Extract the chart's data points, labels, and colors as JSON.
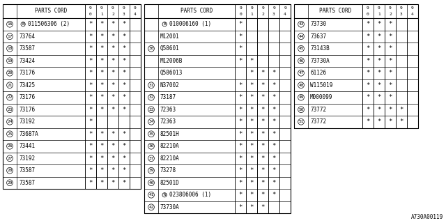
{
  "diagram_code": "A730A00119",
  "col_headers": [
    "9/0",
    "9/1",
    "9/2",
    "9/3",
    "9/4"
  ],
  "bg_color": "#ffffff",
  "line_color": "#000000",
  "text_color": "#000000",
  "tables": [
    {
      "rows": [
        {
          "num": "16",
          "part": "B011506306 (2)",
          "stars": [
            1,
            1,
            1,
            1,
            0
          ],
          "b_prefix": true
        },
        {
          "num": "17",
          "part": "73764",
          "stars": [
            1,
            1,
            1,
            1,
            0
          ],
          "b_prefix": false
        },
        {
          "num": "18",
          "part": "73587",
          "stars": [
            1,
            1,
            1,
            1,
            0
          ],
          "b_prefix": false
        },
        {
          "num": "19",
          "part": "73424",
          "stars": [
            1,
            1,
            1,
            1,
            0
          ],
          "b_prefix": false
        },
        {
          "num": "20",
          "part": "73176",
          "stars": [
            1,
            1,
            1,
            1,
            0
          ],
          "b_prefix": false
        },
        {
          "num": "21",
          "part": "73425",
          "stars": [
            1,
            1,
            1,
            1,
            0
          ],
          "b_prefix": false
        },
        {
          "num": "22",
          "part": "73176",
          "stars": [
            1,
            1,
            1,
            1,
            0
          ],
          "b_prefix": false
        },
        {
          "num": "23",
          "part": "73176",
          "stars": [
            1,
            1,
            1,
            1,
            0
          ],
          "b_prefix": false
        },
        {
          "num": "24",
          "part": "73192",
          "stars": [
            1,
            0,
            0,
            0,
            0
          ],
          "b_prefix": false
        },
        {
          "num": "25",
          "part": "73687A",
          "stars": [
            1,
            1,
            1,
            1,
            0
          ],
          "b_prefix": false
        },
        {
          "num": "26",
          "part": "73441",
          "stars": [
            1,
            1,
            1,
            1,
            0
          ],
          "b_prefix": false
        },
        {
          "num": "27",
          "part": "73192",
          "stars": [
            1,
            1,
            1,
            1,
            0
          ],
          "b_prefix": false
        },
        {
          "num": "28",
          "part": "73587",
          "stars": [
            1,
            1,
            1,
            1,
            0
          ],
          "b_prefix": false
        },
        {
          "num": "29",
          "part": "73587",
          "stars": [
            1,
            1,
            1,
            1,
            0
          ],
          "b_prefix": false
        }
      ]
    },
    {
      "rows": [
        {
          "num": "",
          "part": "B010006160 (1)",
          "stars": [
            1,
            0,
            0,
            0,
            0
          ],
          "b_prefix": true,
          "group": "30"
        },
        {
          "num": "",
          "part": "M12001",
          "stars": [
            1,
            0,
            0,
            0,
            0
          ],
          "b_prefix": false,
          "group": "30"
        },
        {
          "num": "30",
          "part": "Q58601",
          "stars": [
            1,
            0,
            0,
            0,
            0
          ],
          "b_prefix": false,
          "group": "30"
        },
        {
          "num": "",
          "part": "M12006B",
          "stars": [
            1,
            1,
            0,
            0,
            0
          ],
          "b_prefix": false,
          "group": "30"
        },
        {
          "num": "",
          "part": "Q586013",
          "stars": [
            0,
            1,
            1,
            1,
            0
          ],
          "b_prefix": false,
          "group": "30"
        },
        {
          "num": "31",
          "part": "N37002",
          "stars": [
            1,
            1,
            1,
            1,
            0
          ],
          "b_prefix": false,
          "group": ""
        },
        {
          "num": "32",
          "part": "73187",
          "stars": [
            1,
            1,
            1,
            1,
            0
          ],
          "b_prefix": false,
          "group": ""
        },
        {
          "num": "33",
          "part": "72363",
          "stars": [
            1,
            1,
            1,
            1,
            0
          ],
          "b_prefix": false,
          "group": ""
        },
        {
          "num": "34",
          "part": "72363",
          "stars": [
            1,
            1,
            1,
            1,
            0
          ],
          "b_prefix": false,
          "group": ""
        },
        {
          "num": "35",
          "part": "82501H",
          "stars": [
            1,
            1,
            1,
            1,
            0
          ],
          "b_prefix": false,
          "group": ""
        },
        {
          "num": "36",
          "part": "82210A",
          "stars": [
            1,
            1,
            1,
            1,
            0
          ],
          "b_prefix": false,
          "group": ""
        },
        {
          "num": "37",
          "part": "82210A",
          "stars": [
            1,
            1,
            1,
            1,
            0
          ],
          "b_prefix": false,
          "group": ""
        },
        {
          "num": "39",
          "part": "73278",
          "stars": [
            1,
            1,
            1,
            1,
            0
          ],
          "b_prefix": false,
          "group": ""
        },
        {
          "num": "40",
          "part": "82501D",
          "stars": [
            1,
            1,
            1,
            1,
            0
          ],
          "b_prefix": false,
          "group": ""
        },
        {
          "num": "41",
          "part": "N023806006 (1)",
          "stars": [
            1,
            1,
            1,
            1,
            0
          ],
          "b_prefix": false,
          "n_prefix": true,
          "group": ""
        },
        {
          "num": "42",
          "part": "73730A",
          "stars": [
            1,
            1,
            1,
            0,
            0
          ],
          "b_prefix": false,
          "group": ""
        }
      ]
    },
    {
      "rows": [
        {
          "num": "43",
          "part": "73730",
          "stars": [
            1,
            1,
            1,
            0,
            0
          ],
          "b_prefix": false
        },
        {
          "num": "44",
          "part": "73637",
          "stars": [
            1,
            1,
            1,
            0,
            0
          ],
          "b_prefix": false
        },
        {
          "num": "45",
          "part": "73143B",
          "stars": [
            1,
            1,
            1,
            0,
            0
          ],
          "b_prefix": false
        },
        {
          "num": "46",
          "part": "73730A",
          "stars": [
            1,
            1,
            1,
            0,
            0
          ],
          "b_prefix": false
        },
        {
          "num": "47",
          "part": "61126",
          "stars": [
            1,
            1,
            1,
            0,
            0
          ],
          "b_prefix": false
        },
        {
          "num": "48",
          "part": "W115019",
          "stars": [
            1,
            1,
            1,
            0,
            0
          ],
          "b_prefix": false
        },
        {
          "num": "49",
          "part": "M000099",
          "stars": [
            1,
            1,
            1,
            0,
            0
          ],
          "b_prefix": false
        },
        {
          "num": "50",
          "part": "73772",
          "stars": [
            1,
            1,
            1,
            1,
            0
          ],
          "b_prefix": false
        },
        {
          "num": "51",
          "part": "73772",
          "stars": [
            1,
            1,
            1,
            1,
            0
          ],
          "b_prefix": false
        }
      ]
    }
  ]
}
